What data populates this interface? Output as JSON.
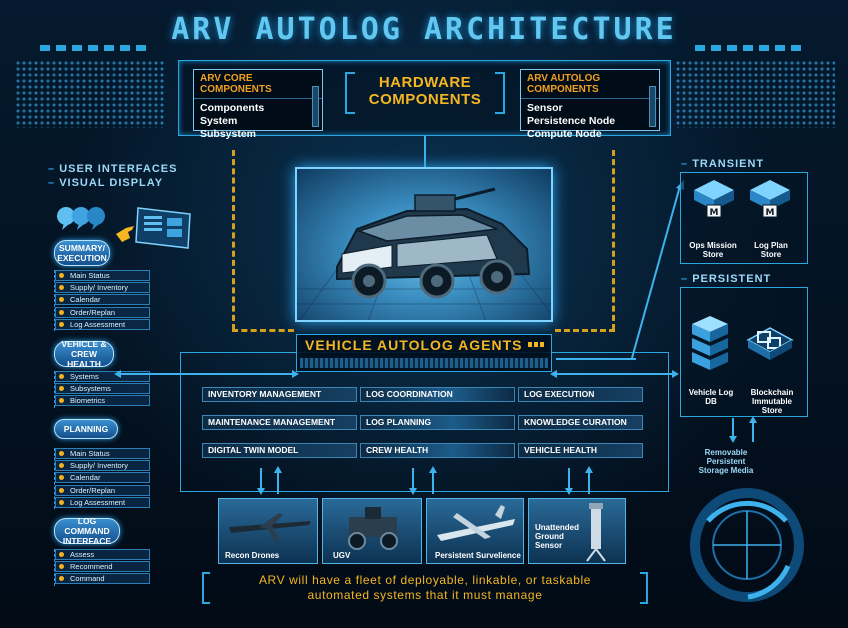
{
  "title": "ARV AUTOLOG ARCHITECTURE",
  "hardware": {
    "label_line1": "HARDWARE",
    "label_line2": "COMPONENTS",
    "core": {
      "heading": "ARV CORE COMPONENTS",
      "items": [
        "Components",
        "System",
        "Subsystem"
      ]
    },
    "autolog": {
      "heading": "ARV AUTOLOG COMPONENTS",
      "items": [
        "Sensor",
        "Persistence Node",
        "Compute Node"
      ]
    }
  },
  "left": {
    "ui_line1": "USER INTERFACES",
    "ui_line2": "VISUAL DISPLAY",
    "groups": [
      {
        "label": "SUMMARY/ EXECUTION",
        "items": [
          "Main Status",
          "Supply/ Inventory",
          "Calendar",
          "Order/Replan",
          "Log Assessment"
        ]
      },
      {
        "label": "VEHICLE & CREW HEALTH",
        "items": [
          "Systems",
          "Subsystems",
          "Biometrics"
        ]
      },
      {
        "label": "PLANNING",
        "items": [
          "Main Status",
          "Supply/ Inventory",
          "Calendar",
          "Order/Replan",
          "Log Assessment"
        ]
      },
      {
        "label": "LOG COMMAND INTERFACE",
        "items": [
          "Assess",
          "Recommend",
          "Command"
        ]
      }
    ]
  },
  "agents": {
    "label": "VEHICLE AUTOLOG AGENTS",
    "rows": [
      [
        "INVENTORY MANAGEMENT",
        "LOG COORDINATION",
        "LOG EXECUTION"
      ],
      [
        "MAINTENANCE MANAGEMENT",
        "LOG PLANNING",
        "KNOWLEDGE CURATION"
      ],
      [
        "DIGITAL TWIN MODEL",
        "CREW HEALTH",
        "VEHICLE HEALTH"
      ]
    ]
  },
  "right": {
    "transient_label": "TRANSIENT",
    "persistent_label": "PERSISTENT",
    "transient_stores": [
      "Ops Mission Store",
      "Log Plan Store"
    ],
    "persistent_stores": [
      "Vehicle Log DB",
      "Blockchain Immutable Store"
    ],
    "removable": "Removable Persistent Storage Media"
  },
  "assets": [
    "Recon Drones",
    "UGV",
    "Persistent Survelience",
    "Unattended Ground Sensor"
  ],
  "footer": {
    "line1": "ARV will have a fleet of deployable, linkable, or taskable",
    "line2": "automated systems that it must manage"
  },
  "colors": {
    "accent_blue": "#2aa7e0",
    "title_blue": "#62c8f0",
    "accent_yellow": "#f5b621",
    "background": "#03101e"
  },
  "icons": [
    "chat-bubbles-icon",
    "tablet-icon",
    "hand-pointer-icon",
    "chip-icon",
    "server-stack-icon",
    "blockchain-icon",
    "reticle-icon"
  ]
}
